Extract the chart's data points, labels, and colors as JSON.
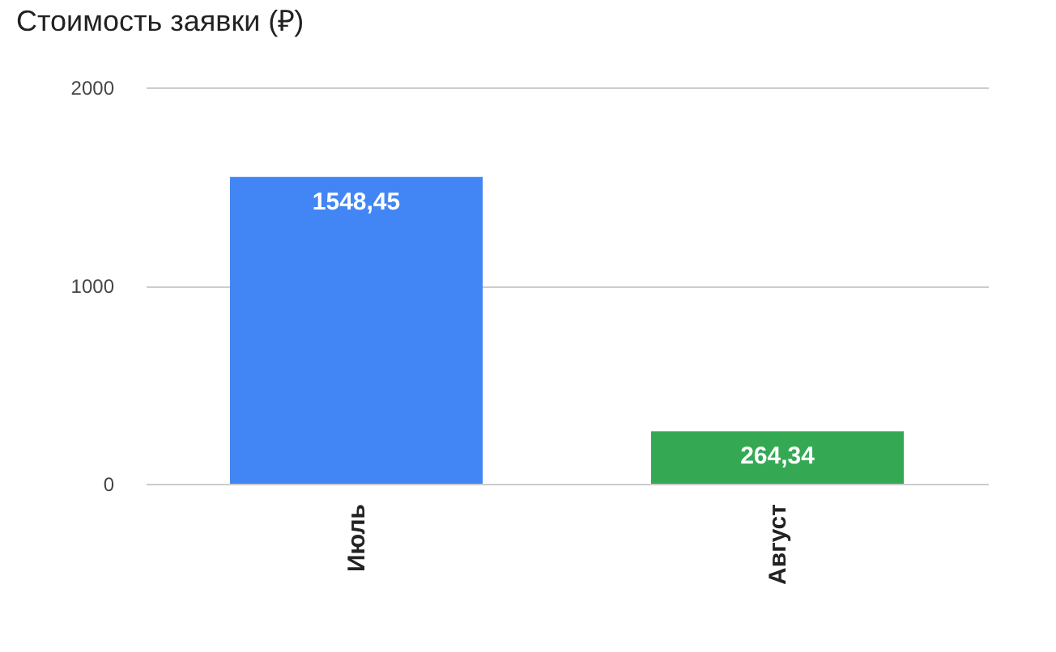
{
  "chart_data": {
    "type": "bar",
    "title": "Стоимость заявки (₽)",
    "categories": [
      "Июль",
      "Август"
    ],
    "values": [
      1548.45,
      264.34
    ],
    "colors": [
      "#4285f4",
      "#34a853"
    ],
    "value_labels": [
      "1548,45",
      "264,34"
    ],
    "ylim": [
      0,
      2000
    ],
    "yticks": [
      0,
      1000,
      2000
    ],
    "grid": "y"
  }
}
